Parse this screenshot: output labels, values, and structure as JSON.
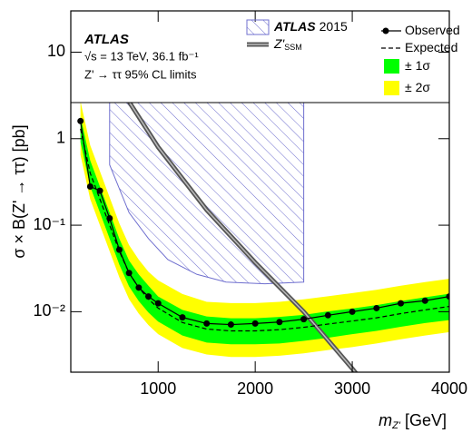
{
  "chart_data": {
    "type": "line",
    "annotations": {
      "experiment": "ATLAS",
      "energy": "√s = 13 TeV, 36.1 fb⁻¹",
      "process": "Z' → ττ 95% CL limits"
    },
    "y_label": "σ × B(Z' → ττ) [pb]",
    "x_label": {
      "symbol": "m",
      "subscript": "Z'",
      "unit": "[GeV]"
    },
    "xlim": [
      100,
      4000
    ],
    "xticks": [
      1000,
      2000,
      3000,
      4000
    ],
    "ylim": [
      0.002,
      30
    ],
    "log_y": true,
    "yticks": [
      {
        "value": 0.01,
        "label": "10⁻²"
      },
      {
        "value": 0.1,
        "label": "10⁻¹"
      },
      1,
      10
    ],
    "x": [
      200,
      300,
      400,
      500,
      600,
      700,
      800,
      900,
      1000,
      1250,
      1500,
      1750,
      2000,
      2250,
      2500,
      2750,
      3000,
      3250,
      3500,
      3750,
      4000
    ],
    "series": [
      {
        "name": "± 2σ",
        "style": "band",
        "color": "#ffff00",
        "lower": [
          0.65,
          0.2,
          0.1,
          0.05,
          0.025,
          0.014,
          0.0095,
          0.007,
          0.0055,
          0.0038,
          0.0032,
          0.003,
          0.003,
          0.0031,
          0.0033,
          0.0036,
          0.0039,
          0.0043,
          0.0048,
          0.0053,
          0.0058
        ],
        "upper": [
          2.7,
          0.84,
          0.42,
          0.21,
          0.105,
          0.059,
          0.04,
          0.029,
          0.023,
          0.016,
          0.013,
          0.0126,
          0.0126,
          0.013,
          0.0139,
          0.0151,
          0.0164,
          0.0179,
          0.02,
          0.022,
          0.024
        ]
      },
      {
        "name": "± 1σ",
        "style": "band",
        "color": "#00ff00",
        "lower": [
          0.91,
          0.28,
          0.14,
          0.07,
          0.035,
          0.0196,
          0.0133,
          0.0098,
          0.0077,
          0.0053,
          0.0044,
          0.0042,
          0.0042,
          0.0043,
          0.0046,
          0.005,
          0.0055,
          0.006,
          0.0067,
          0.0074,
          0.008
        ],
        "upper": [
          1.8,
          0.56,
          0.28,
          0.14,
          0.07,
          0.039,
          0.027,
          0.02,
          0.015,
          0.0105,
          0.0088,
          0.0084,
          0.0084,
          0.0087,
          0.0092,
          0.0101,
          0.0109,
          0.0119,
          0.0133,
          0.0147,
          0.0161
        ]
      },
      {
        "name": "ATLAS",
        "name_suffix": "2015",
        "style": "hatched",
        "color": "#6f6fcf",
        "x": [
          500,
          700,
          900,
          1100,
          1400,
          1700,
          2100,
          2500
        ],
        "values": [
          0.5,
          0.14,
          0.07,
          0.04,
          0.027,
          0.022,
          0.021,
          0.022
        ]
      },
      {
        "name": "Z'",
        "name_subscript": "SSM",
        "style": "double-line",
        "color": "#555555",
        "x": [
          600,
          1000,
          1500,
          2000,
          2500,
          3000,
          3100
        ],
        "values": [
          4,
          0.8,
          0.15,
          0.037,
          0.01,
          0.0022,
          0.0016
        ]
      },
      {
        "name": "Expected",
        "style": "dashed",
        "color": "#000000",
        "values": [
          1.3,
          0.4,
          0.2,
          0.1,
          0.05,
          0.028,
          0.019,
          0.014,
          0.011,
          0.0075,
          0.0063,
          0.006,
          0.006,
          0.0062,
          0.0066,
          0.0072,
          0.0078,
          0.0085,
          0.0095,
          0.0105,
          0.0115
        ]
      },
      {
        "name": "Observed",
        "style": "points-line",
        "color": "#000000",
        "values": [
          1.6,
          0.28,
          0.25,
          0.12,
          0.052,
          0.028,
          0.019,
          0.015,
          0.0125,
          0.0086,
          0.0073,
          0.0071,
          0.0073,
          0.0076,
          0.0082,
          0.0091,
          0.01,
          0.011,
          0.0125,
          0.0134,
          0.015
        ]
      }
    ]
  }
}
